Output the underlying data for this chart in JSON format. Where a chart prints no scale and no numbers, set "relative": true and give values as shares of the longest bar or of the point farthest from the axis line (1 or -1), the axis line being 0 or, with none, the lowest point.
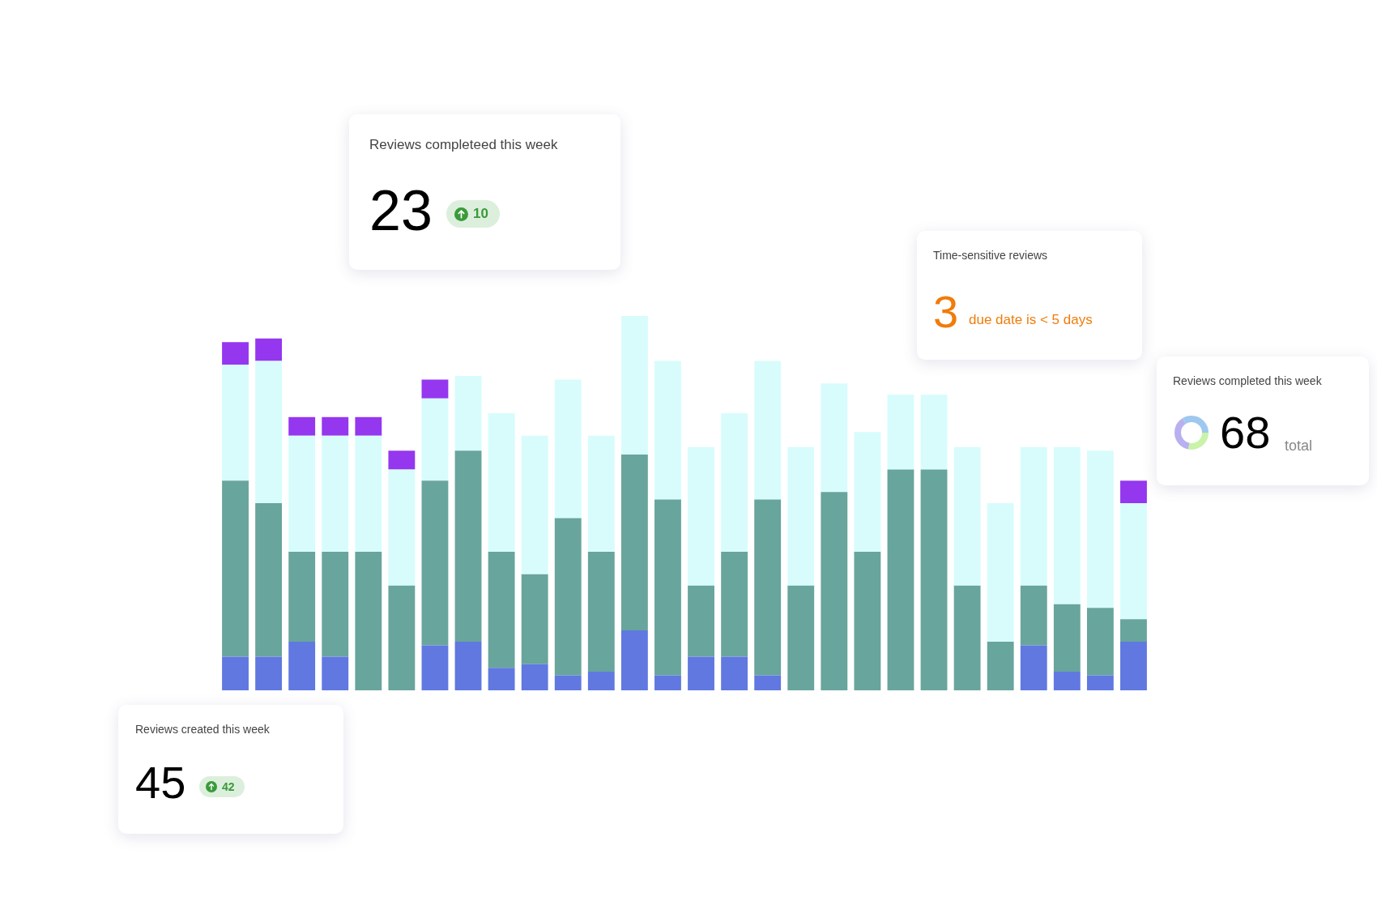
{
  "chart_data": [
    {
      "type": "bar",
      "relative": true,
      "stacked": true,
      "categories": [
        null,
        null,
        null,
        null,
        null,
        null,
        null,
        null,
        null,
        null,
        null,
        null,
        null,
        null,
        null,
        null,
        null,
        null,
        null,
        null,
        null,
        null,
        null,
        null,
        null,
        null,
        null,
        null
      ],
      "series": [
        {
          "color": "#6078e0",
          "values": [
            0.09,
            0.09,
            0.13,
            0.09,
            0,
            0,
            0.12,
            0.13,
            0.06,
            0.07,
            0.04,
            0.05,
            0.16,
            0.04,
            0.09,
            0.09,
            0.04,
            0,
            0,
            0,
            0,
            0,
            0,
            0,
            0.12,
            0.05,
            0.04,
            0.13
          ]
        },
        {
          "color": "#68a59c",
          "values": [
            0.47,
            0.41,
            0.24,
            0.28,
            0.37,
            0.28,
            0.44,
            0.51,
            0.31,
            0.24,
            0.42,
            0.32,
            0.47,
            0.47,
            0.19,
            0.28,
            0.47,
            0.28,
            0.53,
            0.37,
            0.59,
            0.59,
            0.28,
            0.13,
            0.16,
            0.18,
            0.18,
            0.06
          ]
        },
        {
          "color": "#d8fcfc",
          "values": [
            0.31,
            0.38,
            0.31,
            0.31,
            0.31,
            0.31,
            0.22,
            0.2,
            0.37,
            0.37,
            0.37,
            0.31,
            0.37,
            0.37,
            0.37,
            0.37,
            0.37,
            0.37,
            0.29,
            0.32,
            0.2,
            0.2,
            0.37,
            0.37,
            0.37,
            0.42,
            0.42,
            0.31
          ]
        },
        {
          "color": "#9437ef",
          "values": [
            0.06,
            0.06,
            0.05,
            0.05,
            0.05,
            0.05,
            0.05,
            0,
            0,
            0,
            0,
            0,
            0,
            0,
            0,
            0,
            0,
            0,
            0,
            0,
            0,
            0,
            0,
            0,
            0,
            0,
            0,
            0.06
          ]
        }
      ]
    },
    {
      "type": "other",
      "title": "Reviews completeed this week",
      "annotations": [
        "23",
        "10"
      ]
    },
    {
      "type": "other",
      "title": "Time-sensitive reviews",
      "annotations": [
        "3",
        "due date is < 5 days"
      ]
    },
    {
      "type": "other",
      "title": "Reviews completed this week",
      "annotations": [
        "68",
        "total"
      ]
    },
    {
      "type": "other",
      "title": "Reviews created this week",
      "annotations": [
        "45",
        "42"
      ]
    }
  ]
}
